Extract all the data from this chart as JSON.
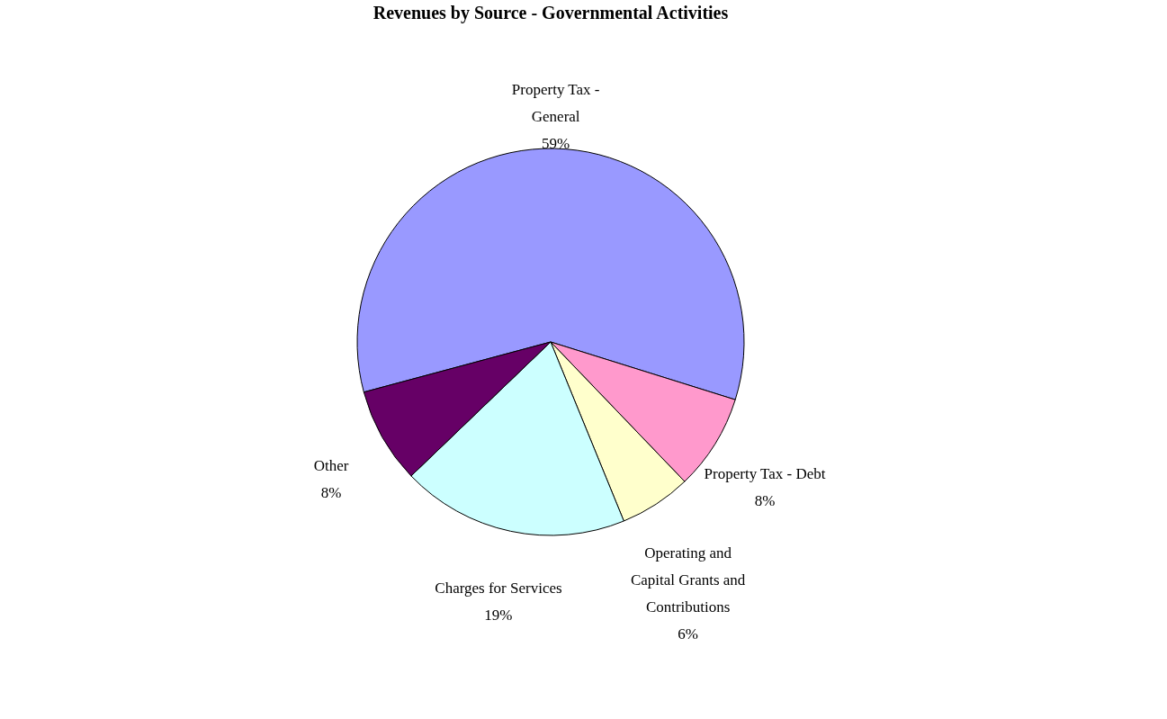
{
  "chart_data": {
    "type": "pie",
    "title": "Revenues by Source - Governmental Activities",
    "categories": [
      "Property Tax - General",
      "Property Tax - Debt",
      "Operating and Capital Grants and Contributions",
      "Charges for Services",
      "Other"
    ],
    "values": [
      59,
      8,
      6,
      19,
      8
    ],
    "value_labels": [
      "59%",
      "8%",
      "6%",
      "19%",
      "8%"
    ],
    "colors": [
      "#9999ff",
      "#ff99cc",
      "#ffffcc",
      "#ccffff",
      "#660066"
    ],
    "legend": false
  }
}
